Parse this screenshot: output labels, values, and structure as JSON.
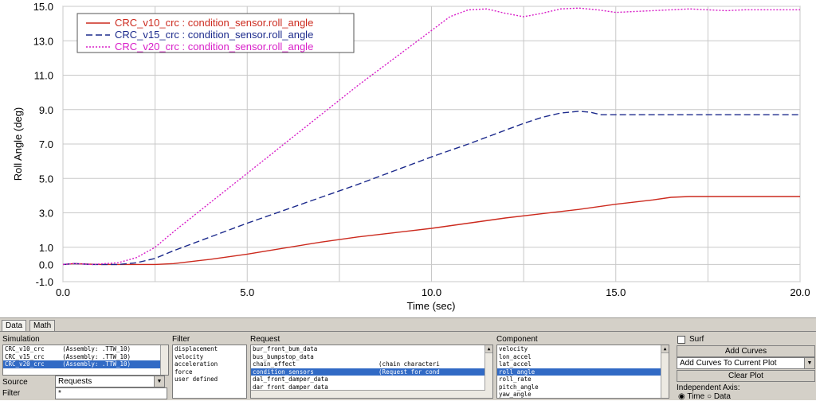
{
  "chart_data": {
    "type": "line",
    "xlabel": "Time (sec)",
    "ylabel": "Roll Angle (deg)",
    "xlim": [
      0.0,
      20.0
    ],
    "ylim": [
      -1.0,
      15.0
    ],
    "x_ticks": [
      "0.0",
      "5.0",
      "10.0",
      "15.0",
      "20.0"
    ],
    "y_ticks": [
      "15.0",
      "13.0",
      "11.0",
      "9.0",
      "7.0",
      "5.0",
      "3.0",
      "1.0",
      "0.0",
      "-1.0"
    ],
    "y_tick_values": [
      15.0,
      13.0,
      11.0,
      9.0,
      7.0,
      5.0,
      3.0,
      1.0,
      0.0,
      -1.0
    ],
    "legend_position": "top-left",
    "grid": true,
    "series": [
      {
        "name": "CRC_v10_crc : condition_sensor.roll_angle",
        "color": "#cc2a1e",
        "style": "solid",
        "x": [
          0.0,
          0.3,
          1.0,
          2.0,
          2.5,
          3.0,
          4.0,
          5.0,
          6.0,
          7.0,
          8.0,
          9.0,
          10.0,
          11.0,
          12.0,
          13.0,
          14.0,
          15.0,
          16.0,
          16.5,
          17.0,
          18.0,
          19.0,
          20.0
        ],
        "y": [
          0.0,
          0.05,
          0.0,
          0.0,
          0.0,
          0.05,
          0.3,
          0.6,
          0.95,
          1.3,
          1.6,
          1.85,
          2.1,
          2.4,
          2.7,
          2.95,
          3.2,
          3.5,
          3.75,
          3.9,
          3.95,
          3.95,
          3.95,
          3.95
        ]
      },
      {
        "name": "CRC_v15_crc : condition_sensor.roll_angle",
        "color": "#1c2a8c",
        "style": "dashed",
        "x": [
          0.0,
          0.3,
          0.8,
          1.5,
          2.0,
          2.5,
          3.0,
          4.0,
          5.0,
          6.0,
          7.0,
          8.0,
          9.0,
          10.0,
          11.0,
          12.0,
          12.5,
          13.0,
          13.5,
          14.0,
          14.3,
          14.6,
          15.0,
          16.0,
          17.0,
          18.0,
          19.0,
          20.0
        ],
        "y": [
          0.0,
          0.05,
          0.0,
          0.0,
          0.1,
          0.35,
          0.8,
          1.6,
          2.4,
          3.15,
          3.9,
          4.65,
          5.45,
          6.25,
          7.0,
          7.8,
          8.2,
          8.55,
          8.8,
          8.9,
          8.85,
          8.7,
          8.7,
          8.7,
          8.7,
          8.7,
          8.7,
          8.7
        ]
      },
      {
        "name": "CRC_v20_crc : condition_sensor.roll_angle",
        "color": "#d81ec8",
        "style": "dotted",
        "x": [
          0.0,
          0.3,
          0.8,
          1.5,
          2.0,
          2.5,
          3.0,
          4.0,
          5.0,
          6.0,
          7.0,
          8.0,
          9.0,
          10.0,
          10.5,
          11.0,
          11.5,
          12.0,
          12.5,
          13.0,
          13.5,
          14.0,
          14.5,
          15.0,
          15.5,
          16.0,
          16.5,
          17.0,
          17.5,
          18.0,
          18.5,
          19.0,
          19.5,
          20.0
        ],
        "y": [
          0.0,
          0.05,
          0.0,
          0.1,
          0.4,
          1.0,
          1.9,
          3.6,
          5.3,
          7.0,
          8.7,
          10.4,
          12.0,
          13.6,
          14.4,
          14.8,
          14.85,
          14.6,
          14.4,
          14.6,
          14.85,
          14.9,
          14.8,
          14.65,
          14.7,
          14.75,
          14.8,
          14.85,
          14.8,
          14.75,
          14.8,
          14.8,
          14.8,
          14.8
        ]
      }
    ]
  },
  "panel": {
    "tabs": [
      "Data",
      "Math"
    ],
    "active_tab": "Data",
    "simulation_label": "Simulation",
    "simulations": [
      {
        "text": "CRC_v10_crc     (Assembly: .TTW_10)",
        "selected": false
      },
      {
        "text": "CRC_v15_crc     (Assembly: .TTW_10)",
        "selected": false
      },
      {
        "text": "CRC_v20_crc     (Assembly: .TTW_10)",
        "selected": true
      }
    ],
    "source_label": "Source",
    "source_value": "Requests",
    "filter_label": "Filter",
    "filter_value": "*",
    "filter_list_label": "Filter",
    "filters": [
      "displacement",
      "velocity",
      "acceleration",
      "force",
      "user defined"
    ],
    "request_label": "Request",
    "requests": [
      {
        "text": "bur_front_bum_data",
        "selected": false
      },
      {
        "text": "bus_bumpstop_data",
        "selected": false
      },
      {
        "text": "chain_effect                       (chain characteri",
        "selected": false
      },
      {
        "text": "condition_sensors                  (Request for cond",
        "selected": true
      },
      {
        "text": "dal_front_damper_data",
        "selected": false
      },
      {
        "text": "dar_front_damper_data",
        "selected": false
      }
    ],
    "component_label": "Component",
    "components": [
      {
        "text": "velocity",
        "selected": false
      },
      {
        "text": "lon_accel",
        "selected": false
      },
      {
        "text": "lat_accel",
        "selected": false
      },
      {
        "text": "roll_angle",
        "selected": true
      },
      {
        "text": "roll_rate",
        "selected": false
      },
      {
        "text": "pitch_angle",
        "selected": false
      },
      {
        "text": "yaw_angle",
        "selected": false
      }
    ],
    "surf_label": "Surf",
    "add_curves_label": "Add Curves",
    "mode_value": "Add Curves To Current Plot",
    "clear_plot_label": "Clear Plot",
    "independent_axis_label": "Independent Axis:",
    "axis_time_label": "Time",
    "axis_data_label": "Data"
  }
}
